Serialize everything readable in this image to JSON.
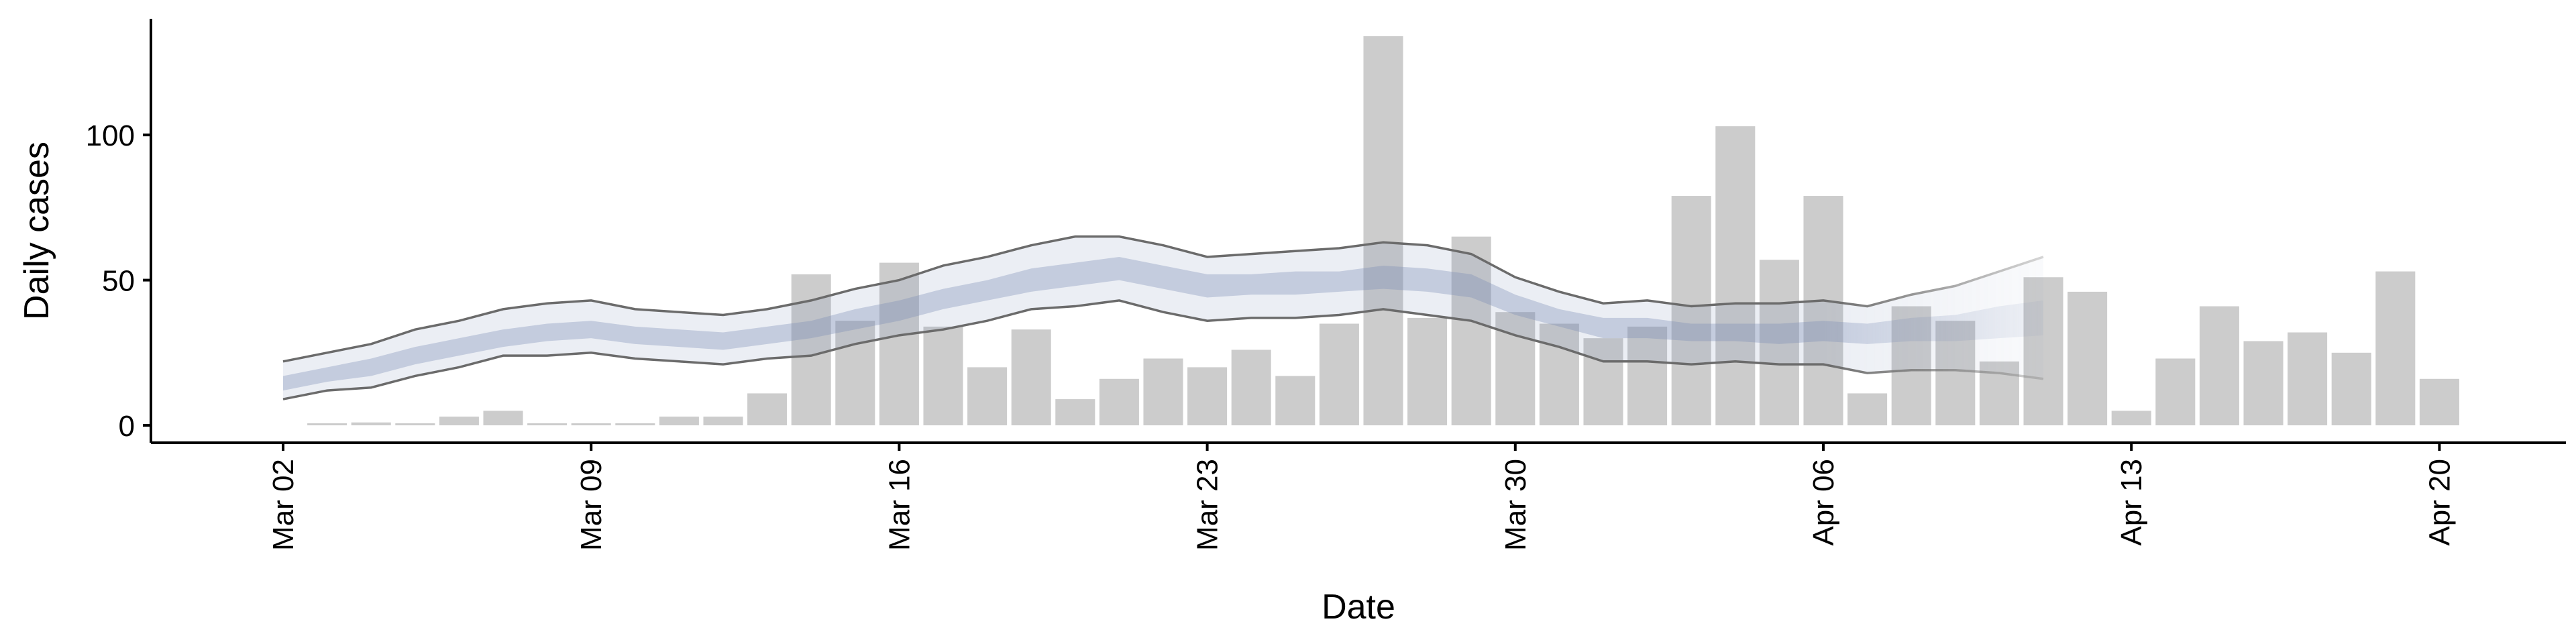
{
  "chart_data": {
    "type": "bar",
    "xlabel": "Date",
    "ylabel": "Daily cases",
    "ylim": [
      -6,
      140
    ],
    "yticks": [
      0,
      50,
      100
    ],
    "xticks": [
      {
        "date": "2020-03-02",
        "label": "Mar 02"
      },
      {
        "date": "2020-03-09",
        "label": "Mar 09"
      },
      {
        "date": "2020-03-16",
        "label": "Mar 16"
      },
      {
        "date": "2020-03-23",
        "label": "Mar 23"
      },
      {
        "date": "2020-03-30",
        "label": "Mar 30"
      },
      {
        "date": "2020-04-06",
        "label": "Apr 06"
      },
      {
        "date": "2020-04-13",
        "label": "Apr 13"
      },
      {
        "date": "2020-04-20",
        "label": "Apr 20"
      }
    ],
    "bars": {
      "color": "#cccccc",
      "dates": [
        "2020-03-03",
        "2020-03-04",
        "2020-03-05",
        "2020-03-06",
        "2020-03-07",
        "2020-03-08",
        "2020-03-09",
        "2020-03-10",
        "2020-03-11",
        "2020-03-12",
        "2020-03-13",
        "2020-03-14",
        "2020-03-15",
        "2020-03-16",
        "2020-03-17",
        "2020-03-18",
        "2020-03-19",
        "2020-03-20",
        "2020-03-21",
        "2020-03-22",
        "2020-03-23",
        "2020-03-24",
        "2020-03-25",
        "2020-03-26",
        "2020-03-27",
        "2020-03-28",
        "2020-03-29",
        "2020-03-30",
        "2020-03-31",
        "2020-04-01",
        "2020-04-02",
        "2020-04-03",
        "2020-04-04",
        "2020-04-05",
        "2020-04-06",
        "2020-04-07",
        "2020-04-08",
        "2020-04-09",
        "2020-04-10",
        "2020-04-11",
        "2020-04-12",
        "2020-04-13",
        "2020-04-14",
        "2020-04-15",
        "2020-04-16",
        "2020-04-17",
        "2020-04-18",
        "2020-04-19",
        "2020-04-20"
      ],
      "values": [
        0,
        1,
        0,
        3,
        5,
        0,
        0,
        0,
        3,
        3,
        11,
        52,
        36,
        56,
        34,
        20,
        33,
        9,
        16,
        23,
        20,
        26,
        17,
        35,
        134,
        37,
        65,
        39,
        35,
        30,
        34,
        79,
        103,
        57,
        79,
        11,
        41,
        36,
        22,
        51,
        46,
        5,
        23,
        41,
        29,
        32,
        25,
        53,
        16
      ]
    },
    "band": {
      "color": "#7b8bb5",
      "dates": [
        "2020-03-02",
        "2020-03-03",
        "2020-03-04",
        "2020-03-05",
        "2020-03-06",
        "2020-03-07",
        "2020-03-08",
        "2020-03-09",
        "2020-03-10",
        "2020-03-11",
        "2020-03-12",
        "2020-03-13",
        "2020-03-14",
        "2020-03-15",
        "2020-03-16",
        "2020-03-17",
        "2020-03-18",
        "2020-03-19",
        "2020-03-20",
        "2020-03-21",
        "2020-03-22",
        "2020-03-23",
        "2020-03-24",
        "2020-03-25",
        "2020-03-26",
        "2020-03-27",
        "2020-03-28",
        "2020-03-29",
        "2020-03-30",
        "2020-03-31",
        "2020-04-01",
        "2020-04-02",
        "2020-04-03",
        "2020-04-04",
        "2020-04-05",
        "2020-04-06",
        "2020-04-07",
        "2020-04-08",
        "2020-04-09",
        "2020-04-10",
        "2020-04-11"
      ],
      "outer_upper": [
        22,
        25,
        28,
        33,
        36,
        40,
        42,
        43,
        40,
        39,
        38,
        40,
        43,
        47,
        50,
        55,
        58,
        62,
        65,
        65,
        62,
        58,
        59,
        60,
        61,
        63,
        62,
        59,
        51,
        46,
        42,
        43,
        41,
        42,
        42,
        43,
        41,
        45,
        48,
        53,
        58
      ],
      "outer_lower": [
        9,
        12,
        13,
        17,
        20,
        24,
        24,
        25,
        23,
        22,
        21,
        23,
        24,
        28,
        31,
        33,
        36,
        40,
        41,
        43,
        39,
        36,
        37,
        37,
        38,
        40,
        38,
        36,
        31,
        27,
        22,
        22,
        21,
        22,
        21,
        21,
        18,
        19,
        19,
        18,
        16
      ],
      "inner_upper": [
        17,
        20,
        23,
        27,
        30,
        33,
        35,
        36,
        34,
        33,
        32,
        34,
        36,
        40,
        43,
        47,
        50,
        54,
        56,
        58,
        55,
        52,
        52,
        53,
        53,
        55,
        54,
        52,
        45,
        40,
        37,
        37,
        35,
        35,
        35,
        36,
        35,
        37,
        38,
        41,
        43
      ],
      "inner_lower": [
        12,
        15,
        17,
        21,
        24,
        27,
        29,
        30,
        28,
        27,
        26,
        28,
        30,
        33,
        36,
        40,
        43,
        46,
        48,
        50,
        47,
        44,
        45,
        45,
        46,
        47,
        46,
        44,
        38,
        34,
        30,
        30,
        29,
        29,
        28,
        29,
        28,
        29,
        29,
        30,
        31
      ]
    }
  }
}
